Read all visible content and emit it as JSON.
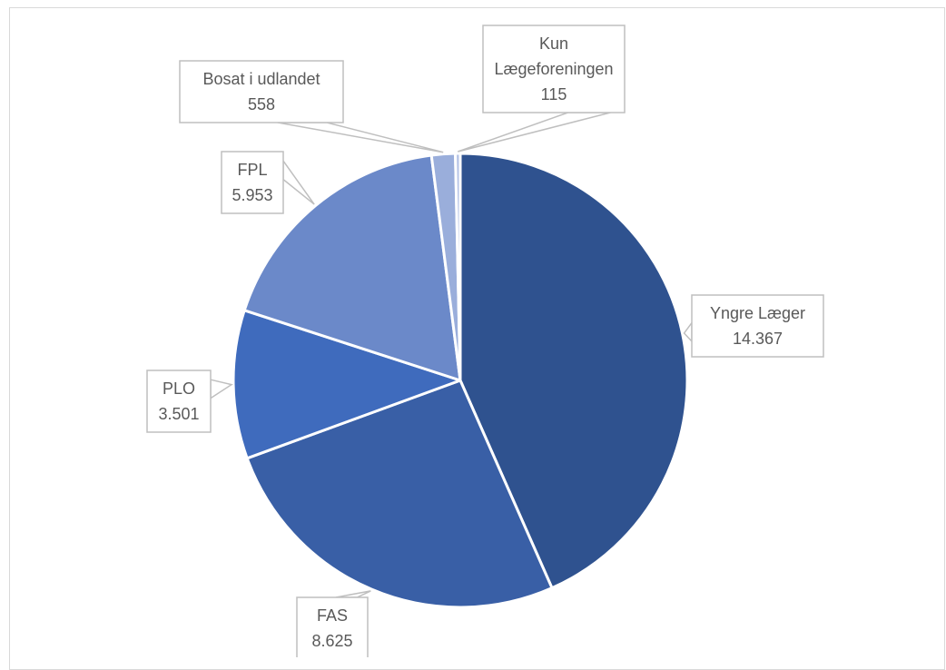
{
  "chart_data": {
    "type": "pie",
    "title": "",
    "slices": [
      {
        "label_lines": [
          "Yngre Læger"
        ],
        "value": 14367,
        "value_label": "14.367",
        "color": "#2f528f"
      },
      {
        "label_lines": [
          "FAS"
        ],
        "value": 8625,
        "value_label": "8.625",
        "color": "#395fa6"
      },
      {
        "label_lines": [
          "PLO"
        ],
        "value": 3501,
        "value_label": "3.501",
        "color": "#3f6bbd"
      },
      {
        "label_lines": [
          "FPL"
        ],
        "value": 5953,
        "value_label": "5.953",
        "color": "#6b89c9"
      },
      {
        "label_lines": [
          "Bosat i udlandet"
        ],
        "value": 558,
        "value_label": "558",
        "color": "#9aaedb"
      },
      {
        "label_lines": [
          "Kun",
          "Lægeforeningen"
        ],
        "value": 115,
        "value_label": "115",
        "color": "#b5c3e6"
      }
    ],
    "start_angle_deg": 0,
    "direction": "clockwise",
    "legend": "none",
    "data_labels": "callouts"
  }
}
